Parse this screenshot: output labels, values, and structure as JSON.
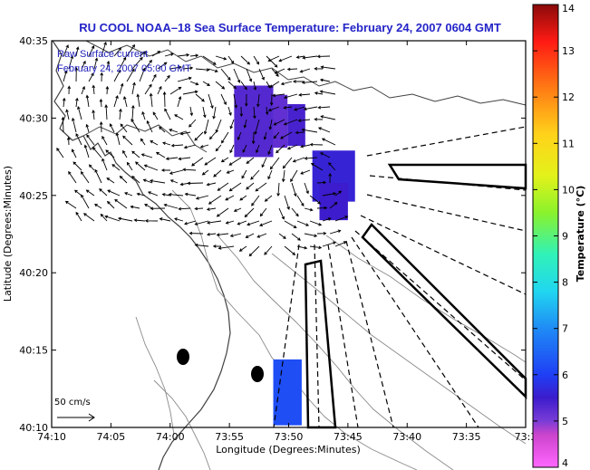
{
  "title": "RU COOL  NOAA–18  Sea Surface Temperature:  February 24, 2007 0604 GMT",
  "legend_line1": "Raw Surface current",
  "legend_line2": "February 24, 2007 05:00 GMT",
  "scale_label": "50 cm/s",
  "chart_data": {
    "type": "map",
    "xlabel": "Longitude (Degrees:Minutes)",
    "ylabel": "Latitude (Degrees:Minutes)",
    "x_ticks": [
      "74:10",
      "74:05",
      "74:00",
      "73:55",
      "73:50",
      "73:45",
      "73:40",
      "73:35",
      "73:3"
    ],
    "y_ticks": [
      "40:35",
      "40:30",
      "40:25",
      "40:20",
      "40:15",
      "40:10"
    ],
    "colorbar": {
      "label": "Temperature (°C)",
      "min": 4,
      "max": 14,
      "ticks": [
        "4",
        "5",
        "6",
        "7",
        "8",
        "9",
        "10",
        "11",
        "12",
        "13",
        "14"
      ]
    },
    "sst_patches": [
      {
        "x": [
          73.91,
          73.855
        ],
        "y": [
          40.535,
          40.458
        ],
        "temp": 5.3
      },
      {
        "x": [
          73.855,
          73.835
        ],
        "y": [
          40.525,
          40.468
        ],
        "temp": 5.2
      },
      {
        "x": [
          73.835,
          73.81
        ],
        "y": [
          40.515,
          40.47
        ],
        "temp": 5.4
      },
      {
        "x": [
          73.8,
          73.74
        ],
        "y": [
          40.465,
          40.41
        ],
        "temp": 5.6
      },
      {
        "x": [
          73.79,
          73.75
        ],
        "y": [
          40.43,
          40.39
        ],
        "temp": 5.5
      },
      {
        "x": [
          73.855,
          73.815
        ],
        "y": [
          40.24,
          40.169
        ],
        "temp": 6.2
      }
    ]
  }
}
